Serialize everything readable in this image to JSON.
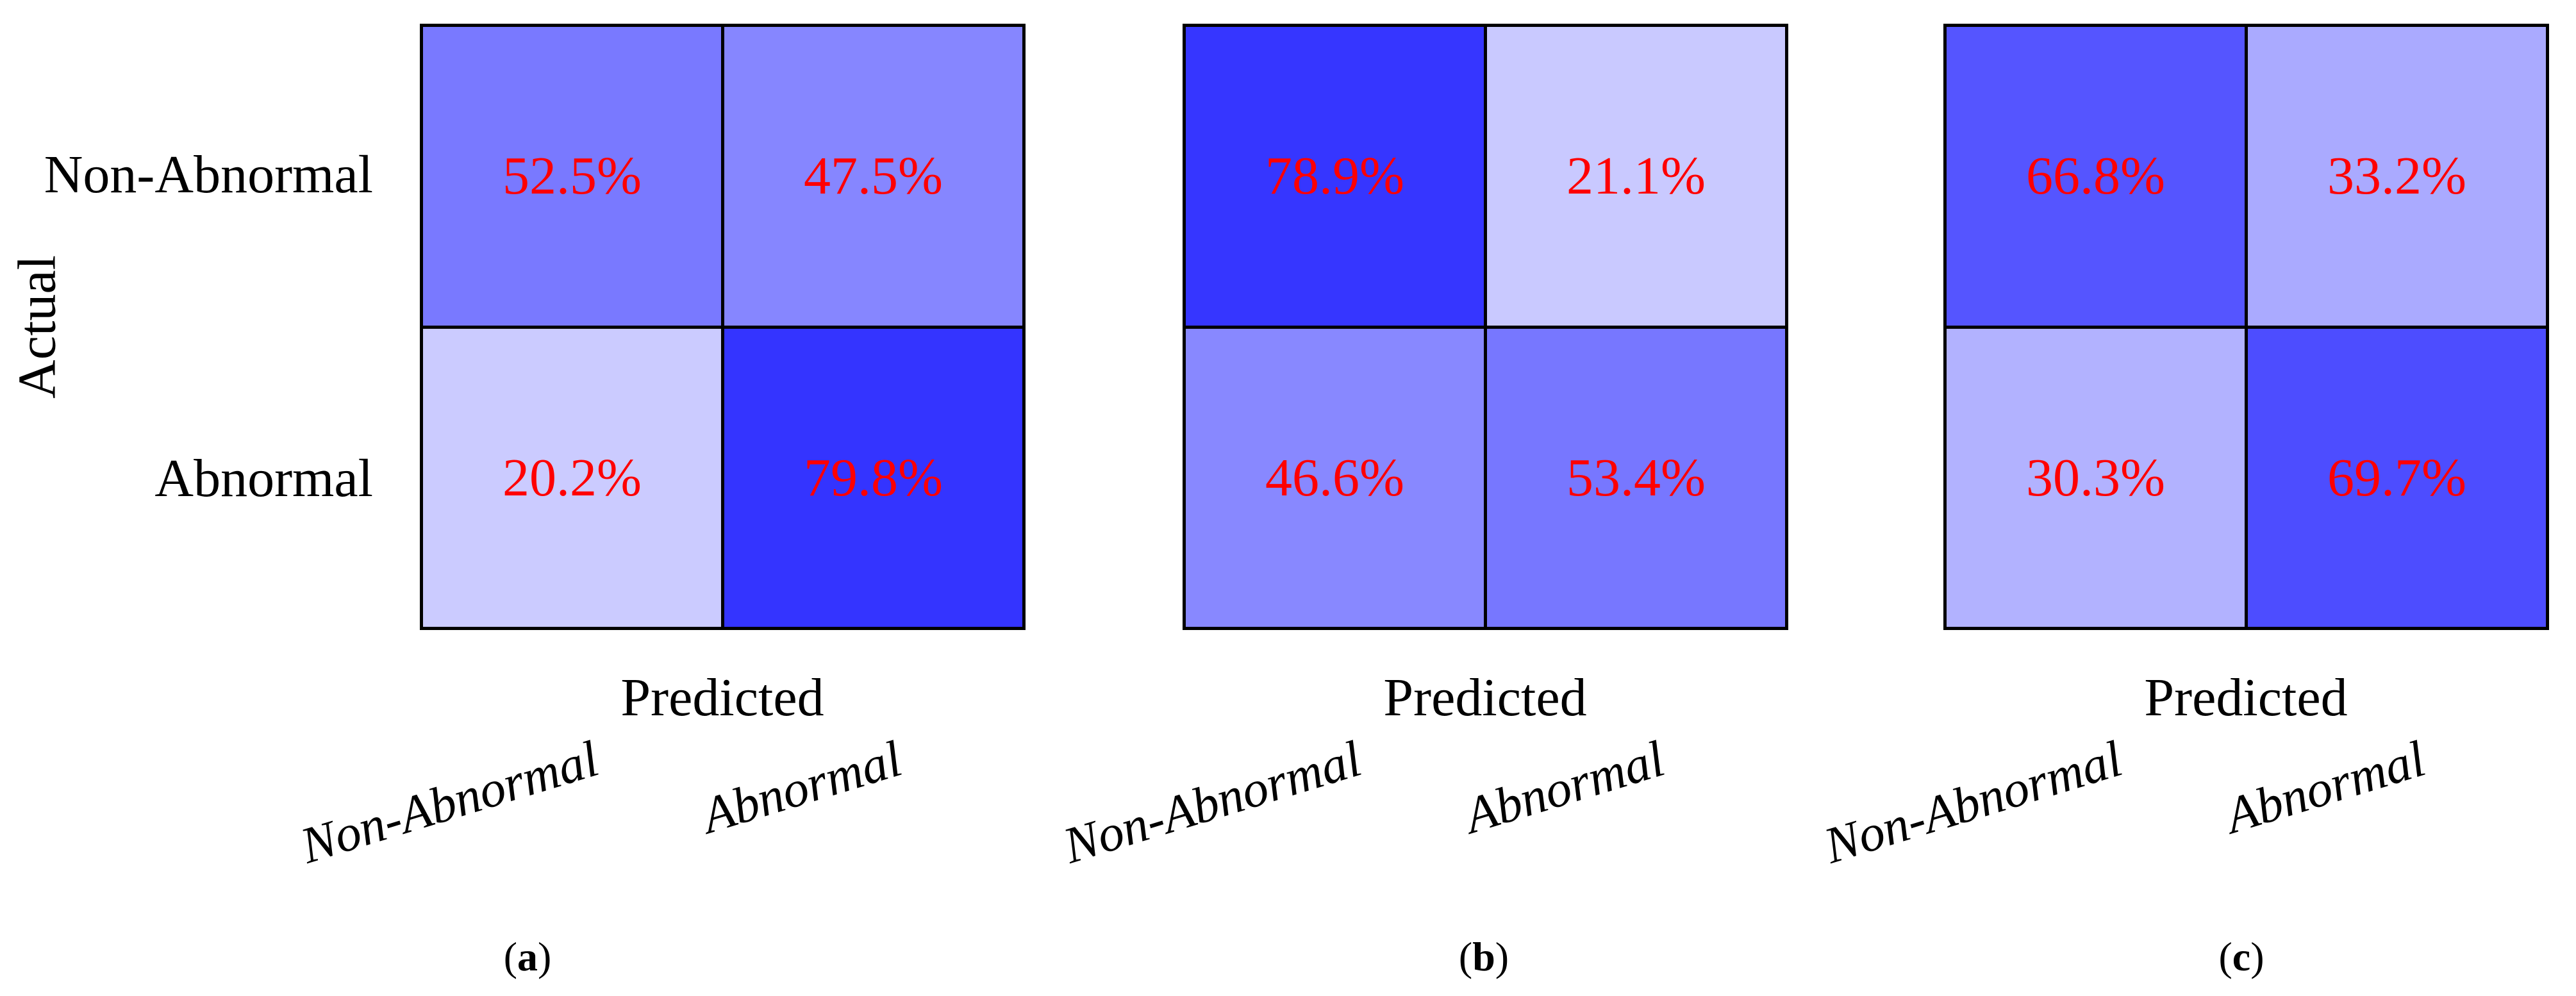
{
  "figure": {
    "ylabel": "Actual",
    "xlabel": "Predicted",
    "row_labels": [
      "Non-Abnormal",
      "Abnormal"
    ],
    "col_labels": [
      "Non-Abnormal",
      "Abnormal"
    ],
    "captions": [
      {
        "open": "(",
        "letter": "a",
        "close": ")"
      },
      {
        "open": "(",
        "letter": "b",
        "close": ")"
      },
      {
        "open": "(",
        "letter": "c",
        "close": ")"
      }
    ],
    "colors": {
      "value_text": "#ff0000",
      "cmap_low": "#ffffff",
      "cmap_high": "#0000ff",
      "border": "#000000",
      "background": "#ffffff"
    }
  },
  "chart_data": [
    {
      "type": "heatmap",
      "caption": "(a)",
      "xlabel": "Predicted",
      "ylabel": "Actual",
      "rows": [
        "Non-Abnormal",
        "Abnormal"
      ],
      "cols": [
        "Non-Abnormal",
        "Abnormal"
      ],
      "values_percent": [
        [
          52.5,
          47.5
        ],
        [
          20.2,
          79.8
        ]
      ],
      "value_suffix": "%",
      "colormap": "linear white (0%) to pure blue (100%)",
      "value_color": "#ff0000",
      "legend": "none",
      "grid": "black cell borders"
    },
    {
      "type": "heatmap",
      "caption": "(b)",
      "xlabel": "Predicted",
      "ylabel": "",
      "rows": [
        "Non-Abnormal",
        "Abnormal"
      ],
      "cols": [
        "Non-Abnormal",
        "Abnormal"
      ],
      "values_percent": [
        [
          78.9,
          21.1
        ],
        [
          46.6,
          53.4
        ]
      ],
      "value_suffix": "%",
      "colormap": "linear white (0%) to pure blue (100%)",
      "value_color": "#ff0000",
      "legend": "none",
      "grid": "black cell borders"
    },
    {
      "type": "heatmap",
      "caption": "(c)",
      "xlabel": "Predicted",
      "ylabel": "",
      "rows": [
        "Non-Abnormal",
        "Abnormal"
      ],
      "cols": [
        "Non-Abnormal",
        "Abnormal"
      ],
      "values_percent": [
        [
          66.8,
          33.2
        ],
        [
          30.3,
          69.7
        ]
      ],
      "value_suffix": "%",
      "colormap": "linear white (0%) to pure blue (100%)",
      "value_color": "#ff0000",
      "legend": "none",
      "grid": "black cell borders"
    }
  ]
}
